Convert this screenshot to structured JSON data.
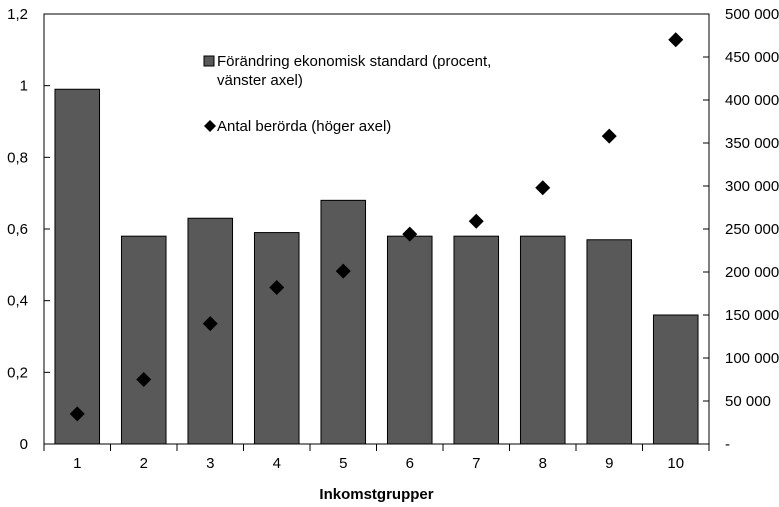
{
  "chart_data": {
    "type": "bar",
    "title": "",
    "xlabel": "Inkomstgrupper",
    "ylabel_left": "",
    "ylabel_right": "",
    "categories": [
      "1",
      "2",
      "3",
      "4",
      "5",
      "6",
      "7",
      "8",
      "9",
      "10"
    ],
    "series": [
      {
        "name": "Förändring ekonomisk standard (procent, vänster axel)",
        "legend_lines": [
          "Förändring ekonomisk standard (procent,",
          "vänster axel)"
        ],
        "type": "bar",
        "axis": "left",
        "color": "#595959",
        "values": [
          0.99,
          0.58,
          0.63,
          0.59,
          0.68,
          0.58,
          0.58,
          0.58,
          0.57,
          0.36
        ]
      },
      {
        "name": "Antal berörda (höger axel)",
        "legend_lines": [
          "Antal berörda (höger axel)"
        ],
        "type": "scatter",
        "marker": "diamond",
        "axis": "right",
        "color": "#000000",
        "values": [
          35000,
          75000,
          140000,
          182000,
          201000,
          244000,
          259000,
          298000,
          358000,
          470000
        ]
      }
    ],
    "y_left": {
      "lim": [
        0,
        1.2
      ],
      "ticks": [
        0,
        0.2,
        0.4,
        0.6,
        0.8,
        1.0,
        1.2
      ],
      "tick_labels": [
        "0",
        "0,2",
        "0,4",
        "0,6",
        "0,8",
        "1",
        "1,2"
      ]
    },
    "y_right": {
      "lim": [
        0,
        500000
      ],
      "ticks": [
        0,
        50000,
        100000,
        150000,
        200000,
        250000,
        300000,
        350000,
        400000,
        450000,
        500000
      ],
      "tick_labels": [
        "-",
        "50 000",
        "100 000",
        "150 000",
        "200 000",
        "250 000",
        "300 000",
        "350 000",
        "400 000",
        "450 000",
        "500 000"
      ]
    },
    "grid": false,
    "legend_position": "top-center"
  }
}
